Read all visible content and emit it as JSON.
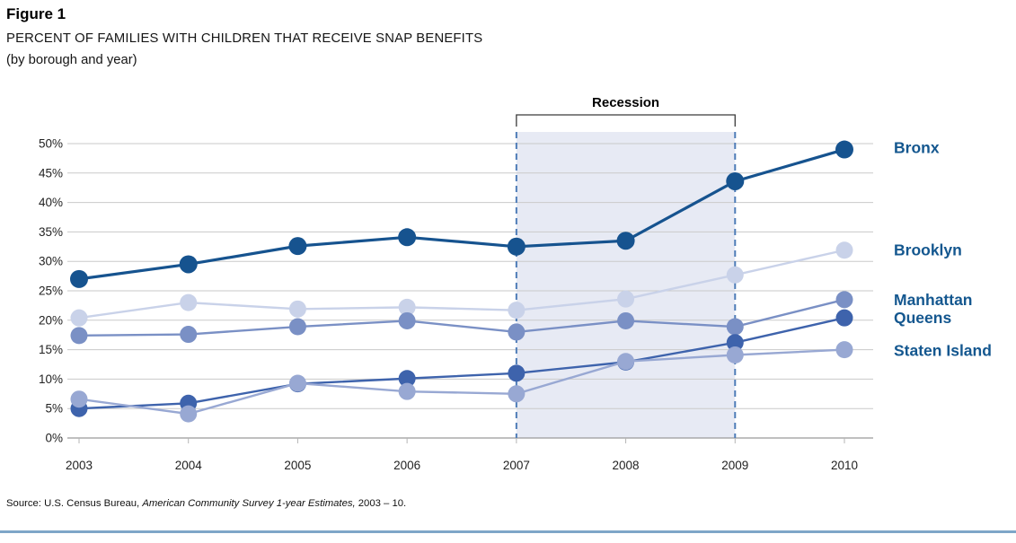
{
  "figure": {
    "label": "Figure 1",
    "title": "PERCENT OF FAMILIES WITH CHILDREN THAT RECEIVE SNAP BENEFITS",
    "subtitle": "(by borough and year)"
  },
  "source": {
    "prefix": "Source: U.S. Census Bureau, ",
    "italic": "American Community Survey 1-year Estimates,",
    "suffix": " 2003 – 10."
  },
  "chart_data": {
    "type": "line",
    "title": "PERCENT OF FAMILIES WITH CHILDREN THAT RECEIVE SNAP BENEFITS (by borough and year)",
    "x": [
      2003,
      2004,
      2005,
      2006,
      2007,
      2008,
      2009,
      2010
    ],
    "x_tick_labels": [
      "2003",
      "2004",
      "2005",
      "2006",
      "2007",
      "2008",
      "2009",
      "2010"
    ],
    "y_tick_labels": [
      "0%",
      "5%",
      "10%",
      "15%",
      "20%",
      "25%",
      "30%",
      "35%",
      "40%",
      "45%",
      "50%"
    ],
    "ylim": [
      0,
      50
    ],
    "ytick_step": 5,
    "grid": true,
    "legend_position": "right-edge-labels",
    "annotation": {
      "label": "Recession",
      "x_start": 2007,
      "x_end": 2009
    },
    "series": [
      {
        "name": "Bronx",
        "color": "#16538F",
        "values": [
          27.0,
          29.5,
          32.6,
          34.1,
          32.5,
          33.5,
          43.6,
          49.0
        ]
      },
      {
        "name": "Brooklyn",
        "color": "#C9D2E9",
        "values": [
          20.4,
          23.0,
          21.9,
          22.2,
          21.7,
          23.6,
          27.7,
          31.9
        ]
      },
      {
        "name": "Manhattan",
        "color": "#7A90C5",
        "values": [
          17.4,
          17.6,
          18.9,
          19.9,
          18.0,
          19.9,
          18.9,
          23.5
        ]
      },
      {
        "name": "Queens",
        "color": "#3E63AC",
        "values": [
          5.0,
          5.9,
          9.2,
          10.1,
          11.0,
          12.9,
          16.2,
          20.4
        ]
      },
      {
        "name": "Staten Island",
        "color": "#98A8D3",
        "values": [
          6.6,
          4.1,
          9.3,
          7.9,
          7.5,
          13.0,
          14.1,
          15.0
        ]
      }
    ],
    "draw_order": [
      "Brooklyn",
      "Manhattan",
      "Queens",
      "Staten Island",
      "Bronx"
    ],
    "colors": {
      "recession_band": "#E7EAF4",
      "recession_border": "#4E7CB8",
      "gridline": "#CACACA",
      "axis_line": "#9A9A9A",
      "tick": "#B5B5B5",
      "tick_text": "#222222",
      "series_label_text": "#14578F",
      "bracket": "#3A3A3A"
    }
  }
}
